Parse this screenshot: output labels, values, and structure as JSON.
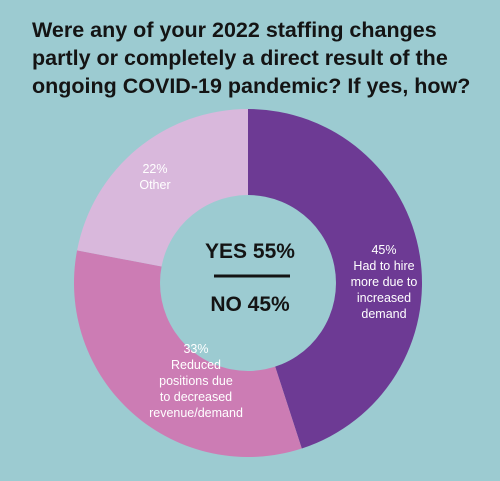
{
  "title": "Were any of your 2022 staffing changes partly or completely a direct result of the ongoing COVID-19 pandemic? If yes, how?",
  "center": {
    "yes": "YES 55%",
    "no": "NO 45%"
  },
  "colors": {
    "background": "#9ccbd1",
    "hire": "#6d3a94",
    "reduced": "#cc7cb4",
    "other": "#d9b8dc"
  },
  "chart_data": {
    "type": "pie",
    "donut": true,
    "categories": [
      "Had to hire more due to increased demand",
      "Reduced positions due to decreased revenue/demand",
      "Other"
    ],
    "values": [
      45,
      33,
      22
    ],
    "unit": "%",
    "labels": [
      {
        "pct": "45%",
        "lines": [
          "Had to hire",
          "more due to",
          "increased",
          "demand"
        ]
      },
      {
        "pct": "33%",
        "lines": [
          "Reduced",
          "positions due",
          "to decreased",
          "revenue/demand"
        ]
      },
      {
        "pct": "22%",
        "lines": [
          "Other"
        ]
      }
    ]
  }
}
